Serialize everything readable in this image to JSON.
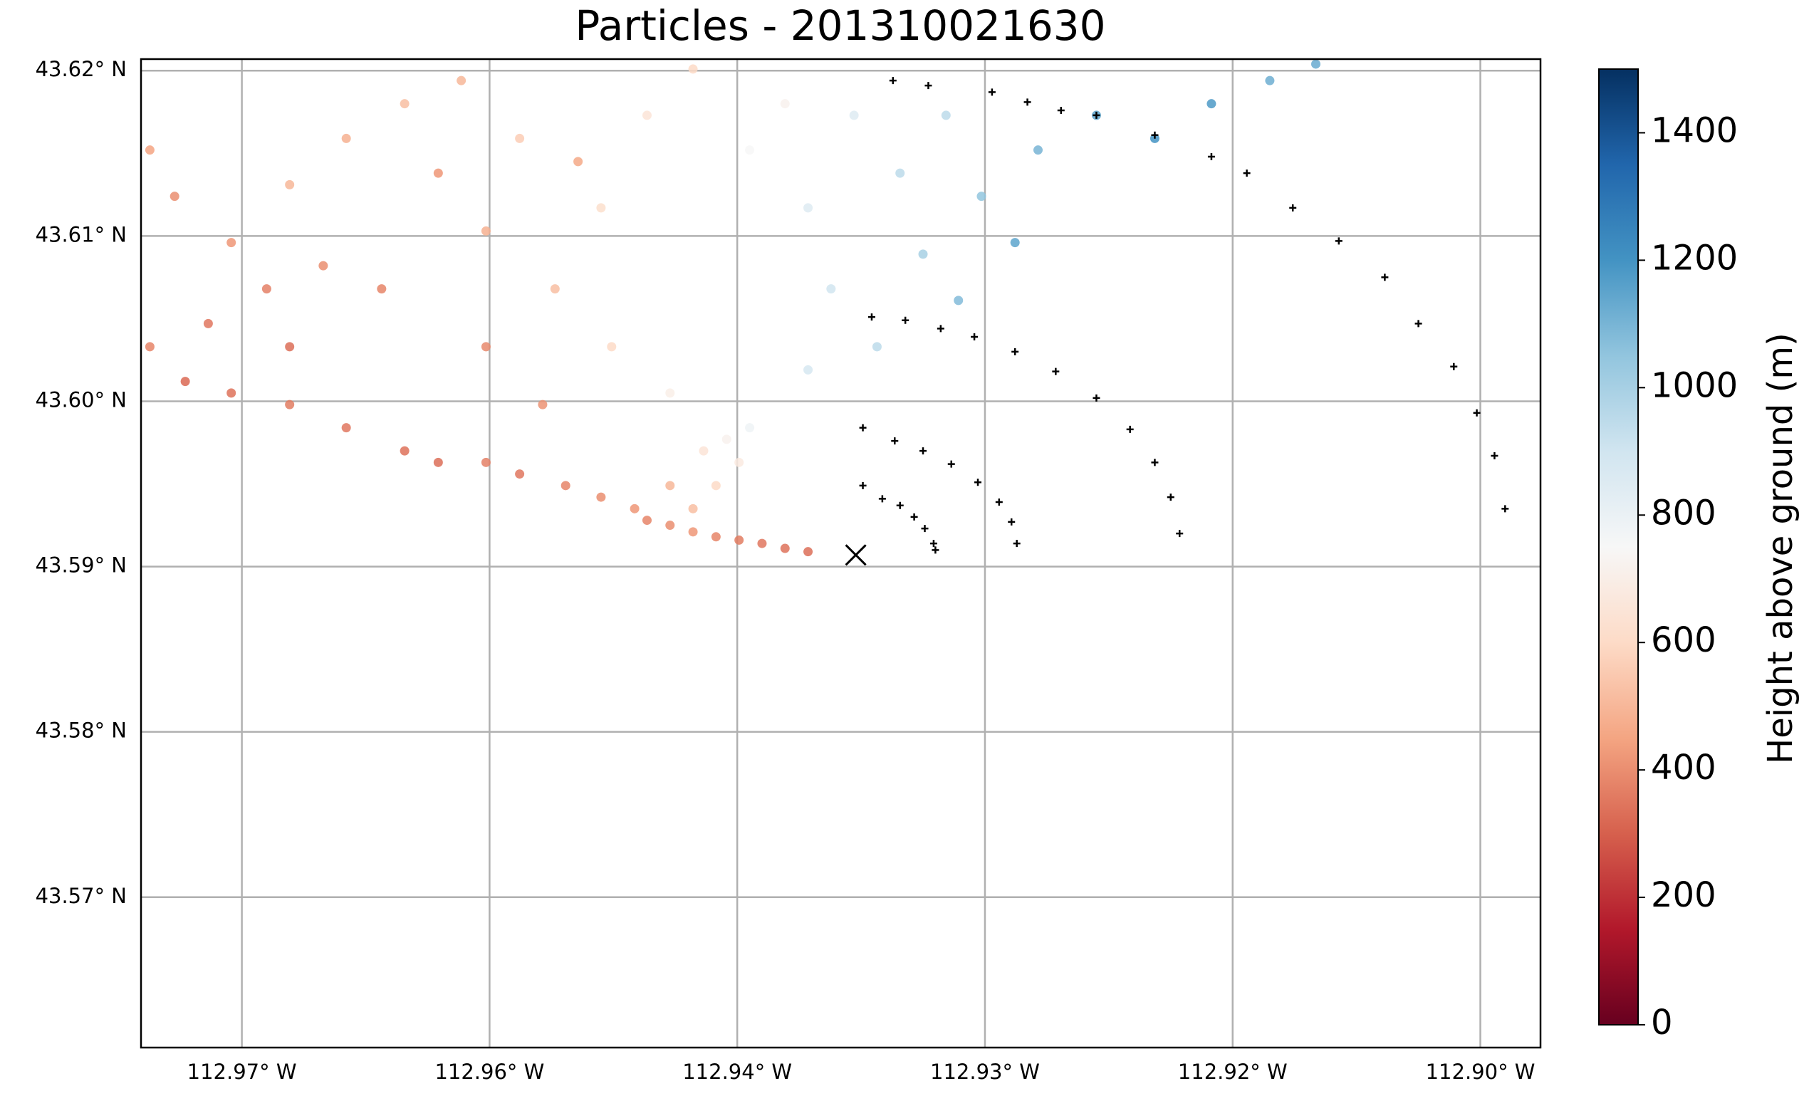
{
  "chart_data": {
    "type": "scatter",
    "title": "Particles - 201310021630",
    "xlim": [
      -112.9777,
      -112.8986
    ],
    "ylim": [
      43.5609,
      43.6207
    ],
    "xticks": [
      {
        "value": -112.972,
        "label": "112.97° W"
      },
      {
        "value": -112.958,
        "label": "112.96° W"
      },
      {
        "value": -112.944,
        "label": "112.94° W"
      },
      {
        "value": -112.93,
        "label": "112.93° W"
      },
      {
        "value": -112.916,
        "label": "112.92° W"
      },
      {
        "value": -112.902,
        "label": "112.90° W"
      }
    ],
    "yticks": [
      {
        "value": 43.57,
        "label": "43.57° N"
      },
      {
        "value": 43.58,
        "label": "43.58° N"
      },
      {
        "value": 43.59,
        "label": "43.59° N"
      },
      {
        "value": 43.6,
        "label": "43.60° N"
      },
      {
        "value": 43.61,
        "label": "43.61° N"
      },
      {
        "value": 43.62,
        "label": "43.62° N"
      }
    ],
    "grid": true,
    "colormap": "RdBu",
    "clim": [
      0,
      1500
    ],
    "cticks": [
      0,
      200,
      400,
      600,
      800,
      1000,
      1200,
      1400
    ],
    "colorbar_label": "Height above ground (m)",
    "particles": {
      "x": [
        -112.94,
        -112.9413,
        -112.9426,
        -112.9439,
        -112.9452,
        -112.9465,
        -112.9478,
        -112.9491,
        -112.9465,
        -112.9452,
        -112.9439,
        -112.9446,
        -112.9433,
        -112.9459,
        -112.9478,
        -112.9498,
        -112.9517,
        -112.9537,
        -112.9563,
        -112.9582,
        -112.9609,
        -112.9628,
        -112.9661,
        -112.9693,
        -112.9726,
        -112.9752,
        -112.9772,
        -112.9739,
        -112.9706,
        -112.9674,
        -112.9726,
        -112.9758,
        -112.9772,
        -112.9693,
        -112.9661,
        -112.9628,
        -112.9596,
        -112.9563,
        -112.9582,
        -112.9543,
        -112.9511,
        -112.9478,
        -112.9517,
        -112.9491,
        -112.9465,
        -112.9433,
        -112.94,
        -112.9387,
        -112.9361,
        -112.94,
        -112.9335,
        -112.9302,
        -112.927,
        -112.9237,
        -112.9204,
        -112.9172,
        -112.9139,
        -112.9113,
        -112.9283,
        -112.9315,
        -112.9348,
        -112.9374,
        -112.9322,
        -112.9413,
        -112.953,
        -112.9609,
        -112.9641,
        -112.9582,
        -112.955,
        -112.9693
      ],
      "y": [
        43.5909,
        43.5911,
        43.5914,
        43.5916,
        43.5918,
        43.5921,
        43.5925,
        43.5928,
        43.5935,
        43.5949,
        43.5963,
        43.5977,
        43.5984,
        43.597,
        43.5949,
        43.5935,
        43.5942,
        43.5949,
        43.5956,
        43.5963,
        43.5963,
        43.597,
        43.5984,
        43.5998,
        43.6005,
        43.6012,
        43.6033,
        43.6047,
        43.6068,
        43.6082,
        43.6096,
        43.6124,
        43.6152,
        43.6131,
        43.6159,
        43.618,
        43.6194,
        43.6159,
        43.6103,
        43.6068,
        43.6033,
        43.6005,
        43.6117,
        43.6173,
        43.6201,
        43.6152,
        43.6117,
        43.6068,
        43.6033,
        43.6019,
        43.6089,
        43.6124,
        43.6152,
        43.6173,
        43.6159,
        43.618,
        43.6194,
        43.6204,
        43.6096,
        43.6061,
        43.6138,
        43.6173,
        43.6173,
        43.618,
        43.6145,
        43.6138,
        43.6068,
        43.6033,
        43.5998,
        43.6033
      ],
      "values": [
        330,
        340,
        350,
        360,
        380,
        420,
        400,
        380,
        520,
        600,
        680,
        720,
        780,
        650,
        500,
        420,
        400,
        380,
        350,
        370,
        330,
        340,
        350,
        360,
        340,
        320,
        380,
        350,
        370,
        400,
        420,
        400,
        450,
        500,
        480,
        520,
        500,
        560,
        480,
        520,
        600,
        700,
        620,
        650,
        600,
        750,
        850,
        900,
        950,
        880,
        1000,
        1050,
        1100,
        1150,
        1200,
        1180,
        1120,
        1130,
        1150,
        1080,
        950,
        850,
        950,
        720,
        460,
        420,
        380,
        390,
        410,
        330
      ]
    },
    "trajectories": {
      "color": "#000000",
      "x": [
        -112.9369,
        -112.9358,
        -112.9348,
        -112.934,
        -112.9334,
        -112.9329,
        -112.9328,
        -112.9369,
        -112.9351,
        -112.9335,
        -112.9319,
        -112.9304,
        -112.9292,
        -112.9285,
        -112.9282,
        -112.9364,
        -112.9345,
        -112.9325,
        -112.9306,
        -112.9283,
        -112.926,
        -112.9237,
        -112.9218,
        -112.9204,
        -112.9195,
        -112.919,
        -112.9352,
        -112.9332,
        -112.9296,
        -112.9276,
        -112.9257,
        -112.9237,
        -112.9204,
        -112.9172,
        -112.9152,
        -112.9126,
        -112.91,
        -112.9074,
        -112.9055,
        -112.9035,
        -112.9022,
        -112.9012,
        -112.9006
      ],
      "y": [
        43.5949,
        43.5941,
        43.5937,
        43.593,
        43.5923,
        43.5914,
        43.591,
        43.5984,
        43.5976,
        43.597,
        43.5962,
        43.5951,
        43.5939,
        43.5927,
        43.5914,
        43.6051,
        43.6049,
        43.6044,
        43.6039,
        43.603,
        43.6018,
        43.6002,
        43.5983,
        43.5963,
        43.5942,
        43.592,
        43.6194,
        43.6191,
        43.6187,
        43.6181,
        43.6176,
        43.6173,
        43.6161,
        43.6148,
        43.6138,
        43.6117,
        43.6097,
        43.6075,
        43.6047,
        43.6021,
        43.5993,
        43.5967,
        43.5935
      ]
    },
    "source": {
      "x": -112.9373,
      "y": 43.5907,
      "color": "#000000"
    }
  }
}
